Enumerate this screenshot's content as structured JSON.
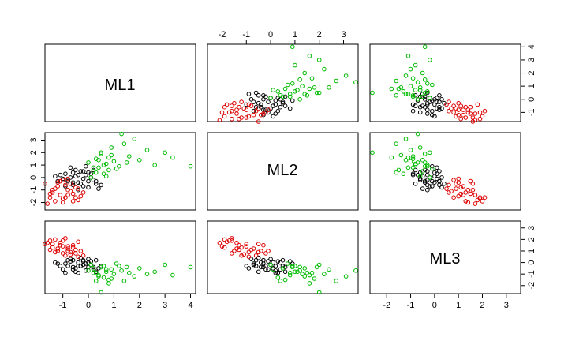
{
  "chart_data": {
    "type": "scatter",
    "subtype": "pairs-matrix",
    "variables": [
      "ML1",
      "ML2",
      "ML3"
    ],
    "ranges": {
      "ML1": [
        -1.7,
        4.2
      ],
      "ML2": [
        -2.6,
        3.6
      ],
      "ML3": [
        -2.7,
        3.6
      ]
    },
    "ticks": {
      "ML1": [
        -1,
        0,
        1,
        2,
        3,
        4
      ],
      "ML2": [
        -2,
        -1,
        0,
        1,
        2,
        3
      ],
      "ML3": [
        -2,
        -1,
        0,
        1,
        2,
        3
      ]
    },
    "axis_ticks": {
      "top": {
        "var": "ML2",
        "values": [
          -2,
          -1,
          0,
          1,
          2,
          3
        ]
      },
      "right": {
        "var": "ML1",
        "values": [
          -1,
          0,
          1,
          2,
          3,
          4
        ]
      },
      "left": {
        "var": "ML2",
        "values": [
          -2,
          -1,
          0,
          1,
          2,
          3
        ]
      },
      "bottom_col1": {
        "var": "ML1",
        "values": [
          -1,
          0,
          1,
          2,
          3,
          4
        ]
      },
      "bottom_col3": {
        "var": "ML3",
        "values": [
          -2,
          -1,
          0,
          1,
          2,
          3
        ]
      },
      "right_row3": {
        "var": "ML3",
        "values": [
          -2,
          -1,
          0,
          1,
          2,
          3
        ]
      }
    },
    "groups": [
      {
        "color": "#000000",
        "points": [
          [
            -1.2,
            -0.3,
            -0.1
          ],
          [
            -1.0,
            -0.1,
            -0.6
          ],
          [
            -0.9,
            0.3,
            -0.9
          ],
          [
            -0.8,
            -0.2,
            -0.3
          ],
          [
            -0.7,
            0.8,
            0.1
          ],
          [
            -0.6,
            -0.6,
            0.2
          ],
          [
            -0.5,
            0.1,
            -0.5
          ],
          [
            -0.4,
            -0.4,
            0.0
          ],
          [
            -0.3,
            0.5,
            -0.3
          ],
          [
            -0.2,
            -0.1,
            0.1
          ],
          [
            -0.1,
            0.2,
            -0.7
          ],
          [
            0.0,
            -0.8,
            0.3
          ],
          [
            0.1,
            0.0,
            -0.2
          ],
          [
            0.2,
            0.6,
            -0.4
          ],
          [
            0.3,
            -0.3,
            0.2
          ],
          [
            0.4,
            -0.9,
            -0.5
          ],
          [
            -0.9,
            -0.7,
            -0.1
          ],
          [
            -0.6,
            0.4,
            -0.6
          ],
          [
            -0.3,
            -0.5,
            0.4
          ],
          [
            0.0,
            0.4,
            0.0
          ],
          [
            -1.1,
            0.2,
            -0.3
          ],
          [
            -0.8,
            -0.3,
            0.2
          ],
          [
            -0.5,
            0.6,
            -0.8
          ],
          [
            -0.2,
            -0.7,
            -0.2
          ],
          [
            0.1,
            0.3,
            0.1
          ],
          [
            0.3,
            -0.5,
            -0.8
          ],
          [
            -0.4,
            -1.0,
            -0.3
          ],
          [
            -0.7,
            0.0,
            0.3
          ],
          [
            -0.1,
            0.9,
            -0.1
          ],
          [
            0.2,
            -0.2,
            -0.6
          ],
          [
            -0.6,
            -0.4,
            -0.4
          ],
          [
            -0.2,
            0.5,
            0.2
          ],
          [
            0.5,
            -0.6,
            -0.3
          ],
          [
            -1.3,
            0.1,
            0.0
          ],
          [
            -0.4,
            0.2,
            -0.9
          ],
          [
            0.0,
            -0.3,
            -0.4
          ]
        ]
      },
      {
        "color": "#dd0000",
        "points": [
          [
            -1.5,
            -1.6,
            1.9
          ],
          [
            -1.4,
            -1.0,
            1.6
          ],
          [
            -1.3,
            -1.9,
            2.0
          ],
          [
            -1.2,
            -0.7,
            1.2
          ],
          [
            -1.1,
            -1.4,
            1.7
          ],
          [
            -1.0,
            -0.2,
            0.8
          ],
          [
            -0.9,
            -1.6,
            2.1
          ],
          [
            -0.8,
            -1.0,
            1.4
          ],
          [
            -0.7,
            -0.5,
            0.9
          ],
          [
            -0.6,
            -1.3,
            1.5
          ],
          [
            -0.5,
            -0.8,
            1.1
          ],
          [
            -0.4,
            -1.8,
            1.8
          ],
          [
            -1.6,
            -2.1,
            1.7
          ],
          [
            -1.4,
            -1.2,
            1.3
          ],
          [
            -1.2,
            -0.4,
            1.0
          ],
          [
            -1.0,
            -1.7,
            1.9
          ],
          [
            -0.9,
            -0.6,
            0.6
          ],
          [
            -0.8,
            -1.4,
            1.2
          ],
          [
            -1.3,
            -0.9,
            0.9
          ],
          [
            -0.7,
            -1.1,
            0.7
          ],
          [
            -0.3,
            -1.5,
            1.0
          ],
          [
            -1.1,
            -0.3,
            1.5
          ],
          [
            -0.6,
            -1.9,
            1.3
          ],
          [
            -0.4,
            -0.9,
            0.5
          ],
          [
            -1.5,
            -1.3,
            1.1
          ],
          [
            -0.5,
            -1.6,
            0.8
          ],
          [
            -1.7,
            -0.5,
            1.6
          ],
          [
            -1.0,
            -2.0,
            1.4
          ],
          [
            -0.2,
            -1.2,
            0.6
          ],
          [
            -0.8,
            -0.1,
            1.0
          ]
        ]
      },
      {
        "color": "#00bb00",
        "points": [
          [
            0.0,
            1.2,
            -0.7
          ],
          [
            0.2,
            0.5,
            -0.5
          ],
          [
            0.3,
            1.5,
            -0.9
          ],
          [
            0.4,
            0.8,
            -1.1
          ],
          [
            0.5,
            1.9,
            -0.4
          ],
          [
            0.6,
            0.3,
            -1.3
          ],
          [
            0.7,
            1.1,
            -0.8
          ],
          [
            0.8,
            0.6,
            -1.5
          ],
          [
            0.9,
            2.4,
            -0.6
          ],
          [
            1.0,
            1.3,
            -1.0
          ],
          [
            1.2,
            0.9,
            -0.3
          ],
          [
            1.4,
            2.7,
            -1.6
          ],
          [
            1.6,
            1.7,
            -0.9
          ],
          [
            1.8,
            3.1,
            -1.2
          ],
          [
            2.0,
            1.4,
            -0.5
          ],
          [
            2.3,
            2.2,
            -1.0
          ],
          [
            2.6,
            1.0,
            -0.8
          ],
          [
            3.0,
            2.0,
            -0.2
          ],
          [
            3.3,
            1.6,
            -1.1
          ],
          [
            4.0,
            0.9,
            -0.4
          ],
          [
            0.1,
            0.0,
            -0.2
          ],
          [
            0.3,
            0.4,
            -1.6
          ],
          [
            0.5,
            2.0,
            -2.6
          ],
          [
            0.7,
            0.1,
            -0.6
          ],
          [
            0.9,
            1.8,
            -1.4
          ],
          [
            1.1,
            0.7,
            -0.1
          ],
          [
            1.3,
            3.5,
            -0.7
          ],
          [
            0.6,
            1.0,
            -0.3
          ],
          [
            0.8,
            1.6,
            -1.8
          ],
          [
            0.2,
            0.8,
            -0.9
          ],
          [
            1.5,
            1.2,
            -0.4
          ],
          [
            0.4,
            1.4,
            -1.2
          ]
        ]
      }
    ]
  }
}
